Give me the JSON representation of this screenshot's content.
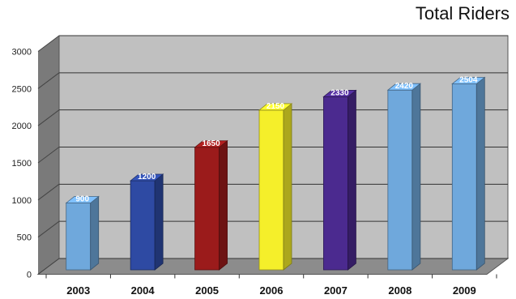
{
  "chart_data": {
    "type": "bar",
    "title": "Total Riders",
    "xlabel": "",
    "ylabel": "",
    "categories": [
      "2003",
      "2004",
      "2005",
      "2006",
      "2007",
      "2008",
      "2009"
    ],
    "values": [
      900,
      1200,
      1650,
      2150,
      2330,
      2420,
      2504
    ],
    "data_labels": [
      "900",
      "1200",
      "1650",
      "2150",
      "2330",
      "2420",
      "2504"
    ],
    "ylim": [
      0,
      3000
    ],
    "yticks": [
      0,
      500,
      1000,
      1500,
      2000,
      2500,
      3000
    ],
    "grid": true,
    "legend": "none",
    "bar_colors": [
      "#6fa8dc",
      "#2e4aa3",
      "#9b1b1b",
      "#f5ef2a",
      "#4b2a8f",
      "#6fa8dc",
      "#6fa8dc"
    ],
    "background_color": "#c0c0c0",
    "floor_color": "#8c8c8c"
  }
}
